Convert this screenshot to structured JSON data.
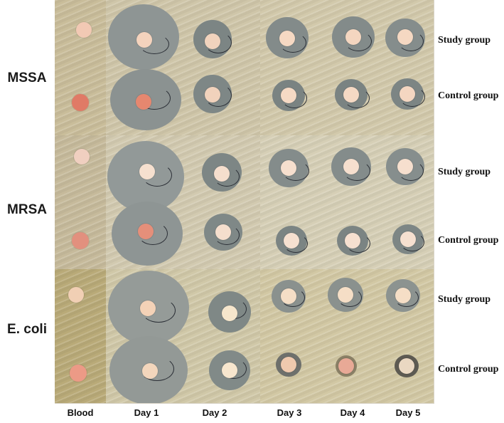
{
  "row_labels": [
    "MSSA",
    "MRSA",
    "E. coli"
  ],
  "group_labels": [
    "Study group",
    "Control group",
    "Study group",
    "Control group",
    "Study group",
    "Control group"
  ],
  "column_labels": [
    "Blood",
    "Day 1",
    "Day 2",
    "Day 3",
    "Day 4",
    "Day 5"
  ]
}
